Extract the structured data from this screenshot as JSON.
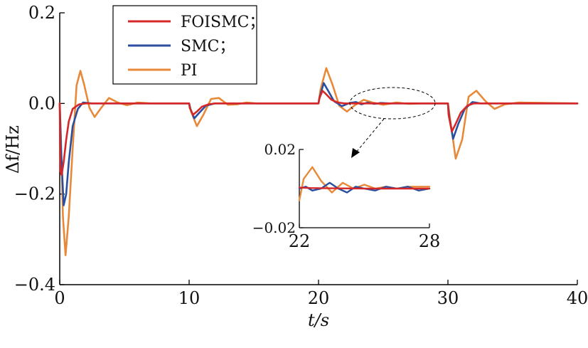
{
  "chart_data": {
    "type": "line",
    "xlabel": "t/s",
    "ylabel": "Δf/Hz",
    "xlim": [
      0,
      40
    ],
    "ylim": [
      -0.4,
      0.2
    ],
    "xticks": [
      "0",
      "10",
      "20",
      "30",
      "40"
    ],
    "yticks": [
      "0.2",
      "0.0",
      "−0.2",
      "−0.4"
    ],
    "xtick_values": [
      0,
      10,
      20,
      30,
      40
    ],
    "ytick_values": [
      0.2,
      0.0,
      -0.2,
      -0.4
    ],
    "grid": false,
    "legend_position": "top-left",
    "series": [
      {
        "name": "FOISMC；",
        "color": "#d62728",
        "x": [
          0,
          0.05,
          0.15,
          0.3,
          0.5,
          0.7,
          1.0,
          1.5,
          2.0,
          3.0,
          10.0,
          10.05,
          10.3,
          10.6,
          11.0,
          11.5,
          12.0,
          20.0,
          20.05,
          20.3,
          20.6,
          21.0,
          21.5,
          22.0,
          30.0,
          30.05,
          30.3,
          30.6,
          31.0,
          31.5,
          32.0,
          40.0
        ],
        "y": [
          0,
          -0.15,
          -0.158,
          -0.13,
          -0.08,
          -0.04,
          -0.012,
          -0.002,
          0,
          0,
          0,
          -0.01,
          -0.025,
          -0.018,
          -0.007,
          -0.002,
          0,
          0,
          0.01,
          0.028,
          0.02,
          0.008,
          0.002,
          0,
          0,
          -0.025,
          -0.062,
          -0.045,
          -0.02,
          -0.005,
          0,
          0
        ]
      },
      {
        "name": "SMC；",
        "color": "#2b4fa0",
        "x": [
          0,
          0.1,
          0.3,
          0.5,
          0.7,
          1.0,
          1.4,
          1.8,
          2.5,
          3.0,
          10.0,
          10.1,
          10.4,
          10.8,
          11.3,
          12.0,
          20.0,
          20.1,
          20.4,
          20.8,
          21.2,
          21.8,
          22.4,
          22.9,
          23.3,
          23.8,
          24.3,
          24.8,
          25.5,
          30.0,
          30.1,
          30.4,
          30.8,
          31.3,
          31.9,
          32.5,
          40.0
        ],
        "y": [
          0,
          -0.1,
          -0.225,
          -0.2,
          -0.13,
          -0.05,
          -0.012,
          0.002,
          0,
          0,
          0,
          -0.012,
          -0.033,
          -0.02,
          -0.005,
          0,
          0,
          0.015,
          0.045,
          0.025,
          0.005,
          -0.006,
          0.001,
          0.003,
          -0.002,
          0.002,
          -0.001,
          0.001,
          0,
          0,
          -0.03,
          -0.078,
          -0.045,
          -0.012,
          0.003,
          0,
          0
        ]
      },
      {
        "name": "PI",
        "color": "#e8893a",
        "x": [
          0,
          0.1,
          0.25,
          0.45,
          0.7,
          1.0,
          1.3,
          1.6,
          1.9,
          2.3,
          2.7,
          3.2,
          3.8,
          4.5,
          5.2,
          6.0,
          7.0,
          10.0,
          10.15,
          10.6,
          11.1,
          11.7,
          12.3,
          13.0,
          13.7,
          14.4,
          15.2,
          20.0,
          20.15,
          20.6,
          21.1,
          21.6,
          22.2,
          22.8,
          23.5,
          24.2,
          25.0,
          26.0,
          27.0,
          28.0,
          30.0,
          30.15,
          30.6,
          31.1,
          31.6,
          32.2,
          32.9,
          33.6,
          34.4,
          35.5,
          40.0
        ],
        "y": [
          0,
          -0.08,
          -0.25,
          -0.335,
          -0.25,
          -0.1,
          0.04,
          0.072,
          0.04,
          -0.01,
          -0.03,
          -0.01,
          0.012,
          0.002,
          -0.004,
          0.002,
          0,
          0,
          -0.018,
          -0.05,
          -0.025,
          0.01,
          0.012,
          -0.003,
          -0.002,
          0.002,
          0,
          0,
          0.03,
          0.078,
          0.04,
          -0.005,
          -0.018,
          -0.004,
          0.008,
          0.002,
          -0.003,
          0.002,
          -0.001,
          0,
          0,
          -0.03,
          -0.122,
          -0.08,
          0.015,
          0.028,
          0.005,
          -0.012,
          -0.002,
          0.002,
          0
        ]
      }
    ],
    "inset": {
      "xlim": [
        22,
        28
      ],
      "ylim": [
        -0.02,
        0.02
      ],
      "xticks": [
        "22",
        "28"
      ],
      "yticks": [
        "0.02",
        "−0.02"
      ],
      "xtick_values": [
        22,
        28
      ],
      "ytick_values": [
        0.02,
        -0.02
      ],
      "series": [
        {
          "color": "#d62728",
          "x": [
            22,
            22.5,
            23,
            24,
            25,
            26,
            27,
            28
          ],
          "y": [
            0.0005,
            0.0003,
            0.0002,
            0.0001,
            0,
            0,
            0,
            0
          ]
        },
        {
          "color": "#2b4fa0",
          "x": [
            22,
            22.3,
            22.6,
            23.0,
            23.4,
            23.8,
            24.2,
            24.6,
            25.0,
            25.5,
            26.0,
            26.5,
            27.0,
            27.5,
            28.0
          ],
          "y": [
            0.0,
            0.001,
            -0.001,
            0.0,
            0.003,
            0.0,
            -0.002,
            0.001,
            0.0,
            -0.001,
            0.001,
            0.0,
            0.001,
            -0.001,
            0.0
          ]
        },
        {
          "color": "#e8893a",
          "x": [
            22,
            22.2,
            22.6,
            23.0,
            23.5,
            24.0,
            24.5,
            25.0,
            25.5,
            26.0,
            26.5,
            27.0,
            27.5,
            28.0
          ],
          "y": [
            -0.006,
            0.005,
            0.011,
            0.004,
            -0.002,
            0.003,
            0.0,
            0.002,
            0.0,
            0.001,
            0.0,
            0.001,
            0.001,
            0.001
          ]
        }
      ]
    }
  }
}
